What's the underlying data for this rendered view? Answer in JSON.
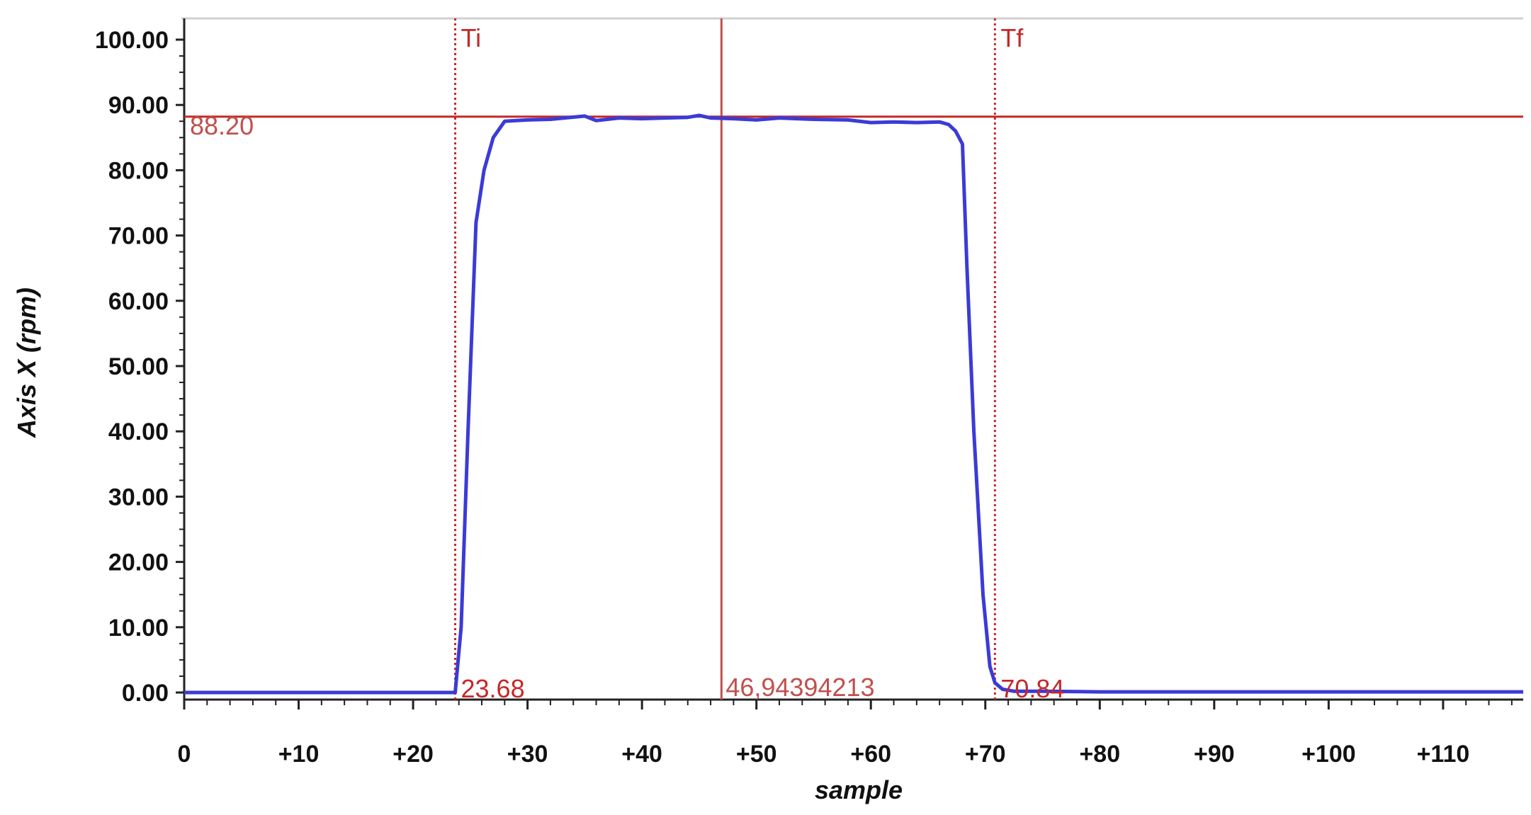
{
  "chart_data": {
    "type": "line",
    "title": "",
    "xlabel": "sample",
    "ylabel": "Axis X (rpm)",
    "xlim": [
      0,
      117
    ],
    "ylim": [
      0,
      100
    ],
    "grid": false,
    "y_ticks": [
      "0.00",
      "10.00",
      "20.00",
      "30.00",
      "40.00",
      "50.00",
      "60.00",
      "70.00",
      "80.00",
      "90.00",
      "100.00"
    ],
    "x_ticks": [
      {
        "value": 0,
        "label": "0"
      },
      {
        "value": 10,
        "label": "+10"
      },
      {
        "value": 20,
        "label": "+20"
      },
      {
        "value": 30,
        "label": "+30"
      },
      {
        "value": 40,
        "label": "+40"
      },
      {
        "value": 50,
        "label": "+50"
      },
      {
        "value": 60,
        "label": "+60"
      },
      {
        "value": 70,
        "label": "+70"
      },
      {
        "value": 80,
        "label": "+80"
      },
      {
        "value": 90,
        "label": "+90"
      },
      {
        "value": 100,
        "label": "+100"
      },
      {
        "value": 110,
        "label": "+110"
      }
    ],
    "series": [
      {
        "color": "#3b3bd6",
        "x": [
          0,
          10,
          20,
          23.68,
          24.2,
          24.8,
          25.5,
          26.2,
          27.0,
          28.0,
          29.0,
          30,
          32,
          35,
          36,
          38,
          40,
          42,
          44,
          45,
          46,
          48,
          50,
          52,
          55,
          58,
          60,
          62,
          64,
          66,
          66.8,
          67.4,
          68.0,
          68.4,
          69.0,
          69.8,
          70.4,
          70.84,
          71.5,
          72.5,
          75,
          80,
          90,
          100,
          110,
          117
        ],
        "y": [
          0,
          0,
          0,
          0,
          10,
          40,
          72,
          80,
          85,
          87.5,
          87.6,
          87.7,
          87.8,
          88.3,
          87.6,
          88.0,
          87.9,
          88.0,
          88.1,
          88.4,
          88.0,
          87.9,
          87.7,
          88.0,
          87.8,
          87.7,
          87.3,
          87.4,
          87.3,
          87.4,
          87.0,
          86.0,
          84.0,
          65.0,
          40.0,
          15.0,
          4.0,
          1.5,
          0.5,
          0.2,
          0.2,
          0.1,
          0.1,
          0.1,
          0.1,
          0.1
        ]
      }
    ],
    "reference_lines": {
      "horizontal": {
        "value": 88.2,
        "label": "88.20",
        "color": "#c62828"
      },
      "vertical_markers": [
        {
          "x": 23.68,
          "top_label": "Ti",
          "bottom_label": "23.68",
          "style": "dotted",
          "color": "#c62828"
        },
        {
          "x": 70.84,
          "top_label": "Tf",
          "bottom_label": "70.84",
          "style": "dotted",
          "color": "#c62828"
        }
      ],
      "cursor": {
        "x": 46.94394213,
        "label": "46,94394213",
        "color": "#c0504d"
      }
    }
  }
}
